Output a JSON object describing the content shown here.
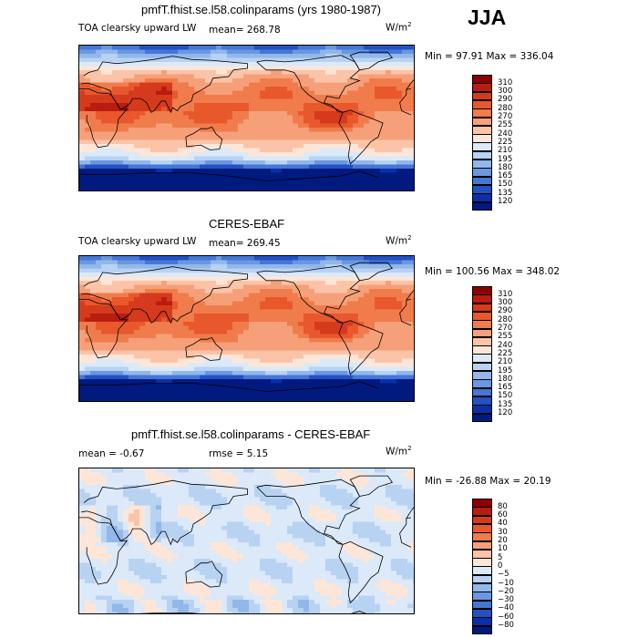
{
  "season": "JJA",
  "chart_data": [
    {
      "type": "heatmap",
      "title": "pmfT.fhist.se.l58.colinparams (yrs 1980-1987)",
      "left_label": "TOA clearsky upward LW",
      "mean_text": "mean= 268.78",
      "units": "W/m",
      "units_sup": "2",
      "minmax_text": "Min =  97.91 Max = 336.04",
      "levels": [
        "310",
        "300",
        "290",
        "280",
        "270",
        "255",
        "240",
        "225",
        "210",
        "195",
        "180",
        "165",
        "150",
        "135",
        "120"
      ],
      "colors": [
        "#8b0000",
        "#b81d10",
        "#d63a1c",
        "#e8582c",
        "#f07c4c",
        "#f6a07a",
        "#fbc4a8",
        "#fde6d8",
        "#dbe9f8",
        "#b8d2f2",
        "#92b7ea",
        "#6a97e0",
        "#4477d6",
        "#2450c4",
        "#0a2fa8",
        "#001a80"
      ],
      "field": "absolute"
    },
    {
      "type": "heatmap",
      "title": "CERES-EBAF",
      "left_label": "TOA clearsky upward LW",
      "mean_text": "mean= 269.45",
      "units": "W/m",
      "units_sup": "2",
      "minmax_text": "Min = 100.56 Max = 348.02",
      "levels": [
        "310",
        "300",
        "290",
        "280",
        "270",
        "255",
        "240",
        "225",
        "210",
        "195",
        "180",
        "165",
        "150",
        "135",
        "120"
      ],
      "colors": [
        "#8b0000",
        "#b81d10",
        "#d63a1c",
        "#e8582c",
        "#f07c4c",
        "#f6a07a",
        "#fbc4a8",
        "#fde6d8",
        "#dbe9f8",
        "#b8d2f2",
        "#92b7ea",
        "#6a97e0",
        "#4477d6",
        "#2450c4",
        "#0a2fa8",
        "#001a80"
      ],
      "field": "absolute"
    },
    {
      "type": "heatmap",
      "title": "pmfT.fhist.se.l58.colinparams - CERES-EBAF",
      "left_label": "mean =   -0.67",
      "mean_text": "rmse =    5.15",
      "units": "W/m",
      "units_sup": "2",
      "minmax_text": "Min = -26.88 Max =  20.19",
      "levels": [
        "80",
        "60",
        "40",
        "30",
        "20",
        "10",
        "5",
        "0",
        "−5",
        "−10",
        "−20",
        "−30",
        "−40",
        "−60",
        "−80"
      ],
      "colors": [
        "#8b0000",
        "#b81d10",
        "#d63a1c",
        "#e8582c",
        "#f07c4c",
        "#f6a07a",
        "#fbc4a8",
        "#fde6d8",
        "#dbe9f8",
        "#b8d2f2",
        "#92b7ea",
        "#6a97e0",
        "#4477d6",
        "#2450c4",
        "#0a2fa8",
        "#001a80"
      ],
      "field": "difference"
    }
  ]
}
